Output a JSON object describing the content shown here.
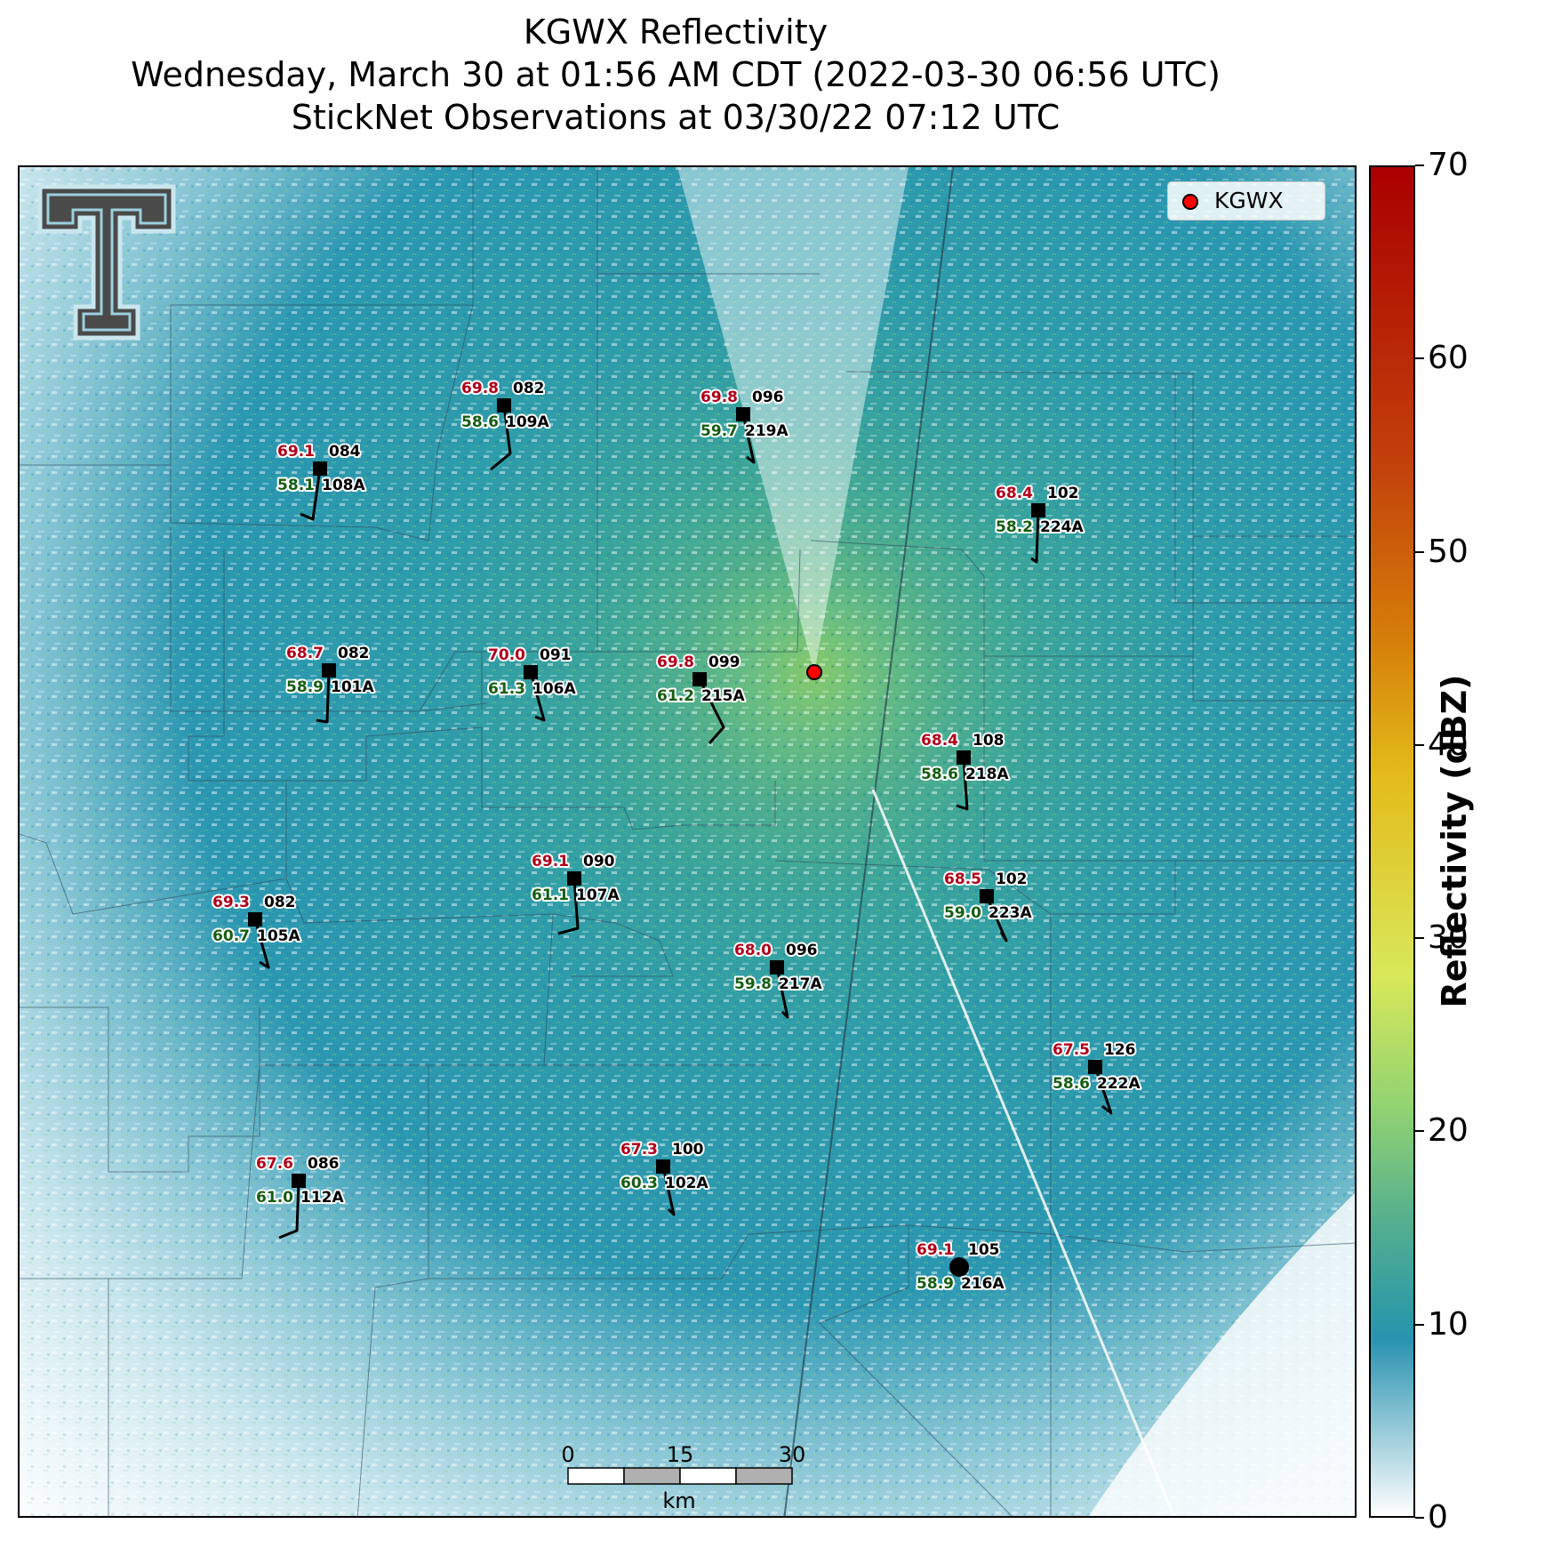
{
  "title": {
    "line1": "KGWX Reflectivity",
    "line2": "Wednesday, March 30 at 01:56 AM CDT (2022-03-30 06:56 UTC)",
    "line3": "StickNet Observations at 03/30/22 07:12 UTC"
  },
  "legend": {
    "label": "KGWX"
  },
  "colorbar": {
    "label": "Reflectivity (dBZ)",
    "ticks": [
      "0",
      "10",
      "20",
      "30",
      "40",
      "50",
      "60",
      "70"
    ]
  },
  "scalebar": {
    "labels": [
      "0",
      "15",
      "30"
    ],
    "unit": "km"
  },
  "stations": [
    {
      "id": "109A",
      "temp": "69.8",
      "dew": "58.6",
      "dir": "082"
    },
    {
      "id": "219A",
      "temp": "69.8",
      "dew": "59.7",
      "dir": "096"
    },
    {
      "id": "108A",
      "temp": "69.1",
      "dew": "58.1",
      "dir": "084"
    },
    {
      "id": "224A",
      "temp": "68.4",
      "dew": "58.2",
      "dir": "102"
    },
    {
      "id": "101A",
      "temp": "68.7",
      "dew": "58.9",
      "dir": "082"
    },
    {
      "id": "106A",
      "temp": "70.0",
      "dew": "61.3",
      "dir": "091"
    },
    {
      "id": "215A",
      "temp": "69.8",
      "dew": "61.2",
      "dir": "099"
    },
    {
      "id": "218A",
      "temp": "68.4",
      "dew": "58.6",
      "dir": "108"
    },
    {
      "id": "107A",
      "temp": "69.1",
      "dew": "61.1",
      "dir": "090"
    },
    {
      "id": "223A",
      "temp": "68.5",
      "dew": "59.0",
      "dir": "102"
    },
    {
      "id": "105A",
      "temp": "69.3",
      "dew": "60.7",
      "dir": "082"
    },
    {
      "id": "217A",
      "temp": "68.0",
      "dew": "59.8",
      "dir": "096"
    },
    {
      "id": "222A",
      "temp": "67.5",
      "dew": "58.6",
      "dir": "126"
    },
    {
      "id": "112A",
      "temp": "67.6",
      "dew": "61.0",
      "dir": "086"
    },
    {
      "id": "102A",
      "temp": "67.3",
      "dew": "60.3",
      "dir": "100"
    },
    {
      "id": "216A",
      "temp": "69.1",
      "dew": "58.9",
      "dir": "105"
    }
  ]
}
